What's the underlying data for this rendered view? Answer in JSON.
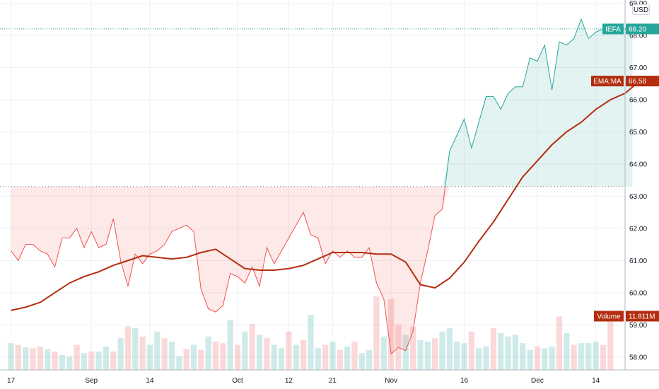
{
  "chart_data": {
    "type": "line",
    "currency": "USD",
    "series": [
      {
        "name": "IEFA",
        "last_value": "68.20",
        "color": "#26a69a",
        "x": [
          0,
          1,
          2,
          3,
          4,
          5,
          6,
          7,
          8,
          9,
          10,
          11,
          12,
          13,
          14,
          15,
          16,
          17,
          18,
          19,
          20,
          21,
          22,
          23,
          24,
          25,
          26,
          27,
          28,
          29,
          30,
          31,
          32,
          33,
          34,
          35,
          36,
          37,
          38,
          39,
          40,
          41,
          42,
          43,
          44,
          45,
          46,
          47,
          48,
          49,
          50,
          51,
          52,
          53,
          54,
          55,
          56,
          57,
          58,
          59,
          60,
          61,
          62,
          63,
          64,
          65,
          66,
          67,
          68,
          69,
          70,
          71,
          72,
          73,
          74,
          75,
          76,
          77,
          78,
          79,
          80,
          81,
          82,
          83,
          84,
          85
        ],
        "values": [
          61.3,
          61.0,
          61.5,
          61.5,
          61.3,
          61.2,
          60.8,
          61.7,
          61.7,
          62.0,
          61.4,
          61.9,
          61.4,
          61.5,
          62.3,
          61.0,
          60.2,
          61.2,
          60.9,
          61.2,
          61.3,
          61.5,
          61.9,
          62.0,
          62.1,
          61.9,
          60.1,
          59.5,
          59.4,
          59.6,
          60.6,
          60.5,
          60.3,
          60.8,
          60.2,
          61.4,
          60.9,
          61.3,
          61.7,
          62.1,
          62.5,
          61.8,
          61.7,
          60.9,
          61.3,
          61.1,
          61.3,
          61.1,
          61.1,
          61.4,
          60.3,
          59.8,
          58.1,
          58.3,
          58.2,
          58.8,
          60.3,
          61.3,
          62.4,
          62.6,
          64.4,
          64.9,
          65.4,
          64.5,
          65.3,
          66.1,
          66.1,
          65.7,
          66.2,
          66.4,
          66.4,
          67.3,
          67.2,
          67.7,
          66.3,
          67.8,
          67.7,
          67.9,
          68.5,
          67.9,
          68.1,
          68.2,
          68.2,
          68.2,
          68.2,
          68.2
        ]
      },
      {
        "name": "EMA:MA",
        "last_value": "66.58",
        "color": "#b22e0e",
        "x": [
          0,
          2,
          4,
          6,
          8,
          10,
          12,
          14,
          16,
          18,
          20,
          22,
          24,
          26,
          28,
          30,
          32,
          34,
          36,
          38,
          40,
          42,
          44,
          46,
          48,
          50,
          52,
          54,
          56,
          58,
          60,
          62,
          64,
          66,
          68,
          70,
          72,
          74,
          76,
          78,
          80,
          82,
          84,
          86
        ],
        "values": [
          59.45,
          59.55,
          59.7,
          60.0,
          60.3,
          60.5,
          60.65,
          60.85,
          61.0,
          61.15,
          61.1,
          61.05,
          61.1,
          61.25,
          61.35,
          61.05,
          60.75,
          60.7,
          60.7,
          60.75,
          60.85,
          61.05,
          61.25,
          61.25,
          61.25,
          61.2,
          61.2,
          60.95,
          60.25,
          60.15,
          60.45,
          60.95,
          61.6,
          62.2,
          62.9,
          63.6,
          64.1,
          64.6,
          65.0,
          65.3,
          65.7,
          66.0,
          66.2,
          66.58
        ]
      }
    ],
    "reference_price": 63.3,
    "volume": {
      "name": "Volume",
      "last_value": "11.811M",
      "up_color": "#26a69a",
      "down_color": "#ef5350",
      "relative_heights": [
        0.32,
        0.3,
        0.27,
        0.26,
        0.28,
        0.25,
        0.22,
        0.18,
        0.16,
        0.3,
        0.2,
        0.22,
        0.22,
        0.28,
        0.22,
        0.38,
        0.52,
        0.5,
        0.4,
        0.3,
        0.46,
        0.38,
        0.34,
        0.16,
        0.25,
        0.3,
        0.24,
        0.4,
        0.34,
        0.32,
        0.6,
        0.3,
        0.46,
        0.55,
        0.42,
        0.38,
        0.3,
        0.26,
        0.46,
        0.3,
        0.36,
        0.66,
        0.26,
        0.3,
        0.34,
        0.24,
        0.28,
        0.34,
        0.2,
        0.24,
        0.88,
        0.4,
        0.85,
        0.54,
        0.42,
        0.52,
        0.36,
        0.34,
        0.38,
        0.46,
        0.5,
        0.34,
        0.32,
        0.46,
        0.26,
        0.28,
        0.5,
        0.44,
        0.4,
        0.42,
        0.32,
        0.24,
        0.28,
        0.26,
        0.28,
        0.64,
        0.44,
        0.3,
        0.32,
        0.32,
        0.34,
        0.3,
        0.62
      ],
      "directions": [
        1,
        0,
        1,
        0,
        0,
        1,
        0,
        1,
        1,
        0,
        1,
        0,
        1,
        1,
        0,
        1,
        0,
        1,
        0,
        1,
        1,
        0,
        1,
        1,
        0,
        1,
        0,
        1,
        0,
        0,
        1,
        0,
        1,
        0,
        1,
        0,
        1,
        1,
        0,
        1,
        0,
        1,
        1,
        0,
        1,
        0,
        1,
        0,
        1,
        1,
        0,
        1,
        0,
        0,
        1,
        0,
        1,
        1,
        0,
        1,
        1,
        1,
        1,
        0,
        1,
        1,
        0,
        1,
        1,
        1,
        1,
        1,
        0,
        1,
        1,
        0,
        1,
        0,
        1,
        1,
        1,
        0,
        0
      ]
    },
    "y_ticks": [
      "58.00",
      "59.00",
      "60.00",
      "61.00",
      "62.00",
      "63.00",
      "64.00",
      "65.00",
      "66.00",
      "67.00",
      "68.00",
      "69.00"
    ],
    "x_ticks": [
      {
        "label": "17",
        "x": 0
      },
      {
        "label": "Sep",
        "x": 11
      },
      {
        "label": "14",
        "x": 19
      },
      {
        "label": "Oct",
        "x": 31
      },
      {
        "label": "12",
        "x": 38
      },
      {
        "label": "21",
        "x": 44
      },
      {
        "label": "Nov",
        "x": 52
      },
      {
        "label": "16",
        "x": 62
      },
      {
        "label": "Dec",
        "x": 72
      },
      {
        "label": "14",
        "x": 80
      }
    ],
    "x_range": [
      -1.5,
      84
    ],
    "ylim": [
      57.6,
      69.1
    ],
    "grid": true
  }
}
